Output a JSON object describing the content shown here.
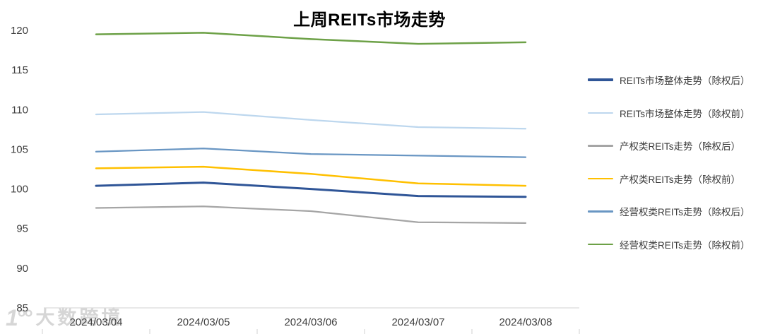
{
  "chart_data": {
    "type": "line",
    "title": "上周REITs市场走势",
    "xlabel": "",
    "ylabel": "",
    "categories": [
      "2024/03/04",
      "2024/03/05",
      "2024/03/06",
      "2024/03/07",
      "2024/03/08"
    ],
    "series": [
      {
        "name": "REITs市场整体走势（除权后）",
        "color": "#2F5597",
        "stroke_width": 3,
        "values": [
          100.4,
          100.8,
          100.0,
          99.1,
          99.0
        ]
      },
      {
        "name": "REITs市场整体走势（除权前）",
        "color": "#BDD7EE",
        "stroke_width": 2.25,
        "values": [
          109.4,
          109.7,
          108.7,
          107.8,
          107.6
        ]
      },
      {
        "name": "产权类REITs走势（除权后）",
        "color": "#A5A5A5",
        "stroke_width": 2.25,
        "values": [
          97.6,
          97.8,
          97.2,
          95.8,
          95.7
        ]
      },
      {
        "name": "产权类REITs走势（除权前）",
        "color": "#FFC000",
        "stroke_width": 2.5,
        "values": [
          102.6,
          102.8,
          101.9,
          100.7,
          100.4
        ]
      },
      {
        "name": "经营权类REITs走势（除权后）",
        "color": "#6996C3",
        "stroke_width": 2.25,
        "values": [
          104.7,
          105.1,
          104.4,
          104.2,
          104.0
        ]
      },
      {
        "name": "经营权类REITs走势（除权前）",
        "color": "#6DA147",
        "stroke_width": 2.5,
        "values": [
          119.5,
          119.7,
          118.9,
          118.3,
          118.5
        ]
      }
    ],
    "ylim": [
      85,
      120
    ],
    "yticks": [
      120,
      115,
      110,
      105,
      100,
      95,
      90,
      85
    ],
    "grid": false,
    "legend_position": "right",
    "axis_color": "#D9D9D9",
    "label_color": "#404040",
    "title_color": "#000000"
  },
  "watermark": {
    "logo": "1°°",
    "text": "大数跨境"
  }
}
